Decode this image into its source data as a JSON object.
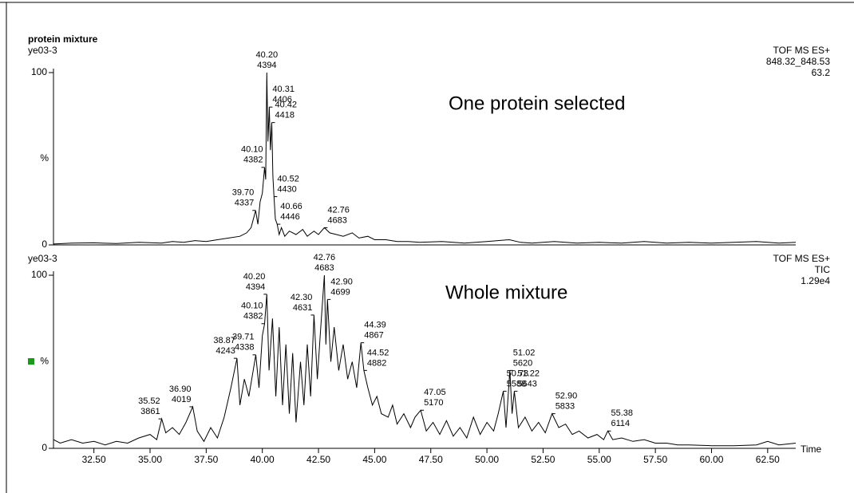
{
  "chart_data": [
    {
      "type": "line",
      "title": "protein mixture",
      "title_color": "#0000ff",
      "subtitle": "ye03-3",
      "info_color": "#993399",
      "info": [
        "TOF MS ES+",
        "848.32_848.53",
        "63.2"
      ],
      "annotation": "One protein selected",
      "color": "#000000",
      "xlim": [
        30.7,
        63.75
      ],
      "ylim": [
        0,
        100
      ],
      "yticks": [
        0,
        100
      ],
      "ylabel": "%",
      "x": [
        30.7,
        31.5,
        32.5,
        33.5,
        34.5,
        35.5,
        36,
        36.5,
        37,
        37.5,
        38,
        38.5,
        39,
        39.3,
        39.5,
        39.7,
        39.8,
        39.9,
        40.0,
        40.1,
        40.15,
        40.2,
        40.25,
        40.31,
        40.36,
        40.42,
        40.47,
        40.52,
        40.58,
        40.66,
        40.75,
        40.85,
        41,
        41.2,
        41.5,
        41.8,
        42,
        42.3,
        42.5,
        42.76,
        43,
        43.3,
        43.6,
        44,
        44.3,
        44.7,
        45,
        45.5,
        46,
        46.5,
        47,
        48,
        49,
        50,
        51,
        51.5,
        52,
        53,
        54,
        55,
        56,
        57,
        58,
        59,
        60,
        61,
        62,
        63,
        63.75
      ],
      "values": [
        0.5,
        1,
        1.2,
        0.8,
        1.5,
        1,
        2,
        1.5,
        2.5,
        2,
        3,
        4,
        5,
        7,
        10,
        20,
        12,
        25,
        30,
        45,
        38,
        100,
        60,
        80,
        55,
        71,
        40,
        28,
        15,
        12,
        6,
        10,
        5,
        8,
        6,
        9,
        5,
        8,
        6,
        10,
        7,
        6,
        5,
        7,
        4,
        5,
        3,
        3,
        2,
        2,
        1.5,
        2,
        1,
        2,
        3,
        1.5,
        1,
        2,
        1,
        1.5,
        1,
        2,
        1,
        1.5,
        1,
        1.5,
        2,
        1,
        1.5
      ],
      "peaks": [
        {
          "x": 39.7,
          "label": "39.70",
          "scan": 4337,
          "y": 20
        },
        {
          "x": 40.1,
          "label": "40.10",
          "scan": 4382,
          "y": 45
        },
        {
          "x": 40.2,
          "label": "40.20",
          "scan": 4394,
          "y": 100
        },
        {
          "x": 40.31,
          "label": "40.31",
          "scan": 4406,
          "y": 80
        },
        {
          "x": 40.42,
          "label": "40.42",
          "scan": 4418,
          "y": 71
        },
        {
          "x": 40.52,
          "label": "40.52",
          "scan": 4430,
          "y": 28
        },
        {
          "x": 40.66,
          "label": "40.66",
          "scan": 4446,
          "y": 12
        },
        {
          "x": 42.76,
          "label": "42.76",
          "scan": 4683,
          "y": 10
        }
      ]
    },
    {
      "type": "line",
      "subtitle": "ye03-3",
      "info_color": "#228b22",
      "info": [
        "TOF MS ES+",
        "TIC",
        "1.29e4"
      ],
      "annotation": "Whole mixture",
      "color": "#000000",
      "xlim": [
        30.7,
        63.75
      ],
      "ylim": [
        0,
        100
      ],
      "yticks": [
        0,
        100
      ],
      "ylabel": "%",
      "xlabel": "Time",
      "xticks": [
        {
          "value": 32.5,
          "label": "32.50"
        },
        {
          "value": 35,
          "label": "35.00"
        },
        {
          "value": 37.5,
          "label": "37.50"
        },
        {
          "value": 40,
          "label": "40.00"
        },
        {
          "value": 42.5,
          "label": "42.50"
        },
        {
          "value": 45,
          "label": "45.00"
        },
        {
          "value": 47.5,
          "label": "47.50"
        },
        {
          "value": 50,
          "label": "50.00"
        },
        {
          "value": 52.5,
          "label": "52.50"
        },
        {
          "value": 55,
          "label": "55.00"
        },
        {
          "value": 57.5,
          "label": "57.50"
        },
        {
          "value": 60,
          "label": "60.00"
        },
        {
          "value": 62.5,
          "label": "62.50"
        }
      ],
      "x": [
        30.7,
        31,
        31.5,
        32,
        32.5,
        33,
        33.5,
        34,
        34.5,
        35,
        35.3,
        35.52,
        35.7,
        36,
        36.3,
        36.6,
        36.9,
        37.1,
        37.4,
        37.7,
        38,
        38.3,
        38.6,
        38.87,
        39,
        39.2,
        39.4,
        39.71,
        39.85,
        40,
        40.1,
        40.2,
        40.3,
        40.45,
        40.6,
        40.75,
        40.9,
        41.05,
        41.2,
        41.35,
        41.5,
        41.7,
        41.85,
        42,
        42.15,
        42.3,
        42.45,
        42.6,
        42.76,
        42.83,
        42.9,
        43.05,
        43.2,
        43.4,
        43.6,
        43.8,
        44,
        44.2,
        44.39,
        44.52,
        44.7,
        44.9,
        45.1,
        45.3,
        45.6,
        45.8,
        46,
        46.3,
        46.6,
        46.8,
        47.05,
        47.3,
        47.6,
        47.9,
        48.2,
        48.5,
        48.8,
        49.1,
        49.4,
        49.7,
        50,
        50.3,
        50.5,
        50.73,
        50.85,
        51.02,
        51.12,
        51.22,
        51.4,
        51.7,
        52,
        52.3,
        52.6,
        52.9,
        53.2,
        53.5,
        53.8,
        54.1,
        54.5,
        54.9,
        55.2,
        55.38,
        55.6,
        56,
        56.5,
        57,
        57.5,
        58,
        58.5,
        59,
        60,
        61,
        62,
        62.5,
        63,
        63.75
      ],
      "values": [
        5,
        3,
        5,
        3,
        4,
        2,
        4,
        3,
        6,
        8,
        5,
        17,
        9,
        12,
        8,
        15,
        24,
        10,
        4,
        12,
        6,
        18,
        35,
        52,
        25,
        40,
        30,
        54,
        35,
        65,
        72,
        89,
        45,
        75,
        30,
        70,
        25,
        60,
        20,
        55,
        15,
        50,
        25,
        60,
        30,
        77,
        40,
        70,
        100,
        60,
        86,
        50,
        70,
        45,
        60,
        40,
        50,
        35,
        61,
        45,
        35,
        25,
        30,
        20,
        18,
        25,
        14,
        20,
        12,
        18,
        22,
        10,
        15,
        8,
        16,
        7,
        12,
        6,
        18,
        8,
        15,
        10,
        20,
        33,
        12,
        45,
        20,
        33,
        12,
        18,
        10,
        15,
        9,
        20,
        12,
        14,
        8,
        10,
        6,
        8,
        5,
        10,
        5,
        6,
        4,
        5,
        3,
        3,
        2,
        2,
        1.5,
        1.5,
        2,
        4,
        2,
        3
      ],
      "peaks": [
        {
          "x": 35.52,
          "label": "35.52",
          "scan": 3861,
          "y": 17
        },
        {
          "x": 36.9,
          "label": "36.90",
          "scan": 4019,
          "y": 24
        },
        {
          "x": 38.87,
          "label": "38.87",
          "scan": 4243,
          "y": 52
        },
        {
          "x": 39.71,
          "label": "39.71",
          "scan": 4338,
          "y": 54
        },
        {
          "x": 40.1,
          "label": "40.10",
          "scan": 4382,
          "y": 72
        },
        {
          "x": 40.2,
          "label": "40.20",
          "scan": 4394,
          "y": 89
        },
        {
          "x": 42.3,
          "label": "42.30",
          "scan": 4631,
          "y": 77
        },
        {
          "x": 42.76,
          "label": "42.76",
          "scan": 4683,
          "y": 100
        },
        {
          "x": 42.9,
          "label": "42.90",
          "scan": 4699,
          "y": 86
        },
        {
          "x": 44.39,
          "label": "44.39",
          "scan": 4867,
          "y": 61
        },
        {
          "x": 44.52,
          "label": "44.52",
          "scan": 4882,
          "y": 45
        },
        {
          "x": 47.05,
          "label": "47.05",
          "scan": 5170,
          "y": 22
        },
        {
          "x": 50.73,
          "label": "50.73",
          "scan": 5588,
          "y": 33
        },
        {
          "x": 51.02,
          "label": "51.02",
          "scan": 5620,
          "y": 45
        },
        {
          "x": 51.22,
          "label": "51.22",
          "scan": 5643,
          "y": 33
        },
        {
          "x": 52.9,
          "label": "52.90",
          "scan": 5833,
          "y": 20
        },
        {
          "x": 55.38,
          "label": "55.38",
          "scan": 6114,
          "y": 10
        }
      ]
    }
  ]
}
